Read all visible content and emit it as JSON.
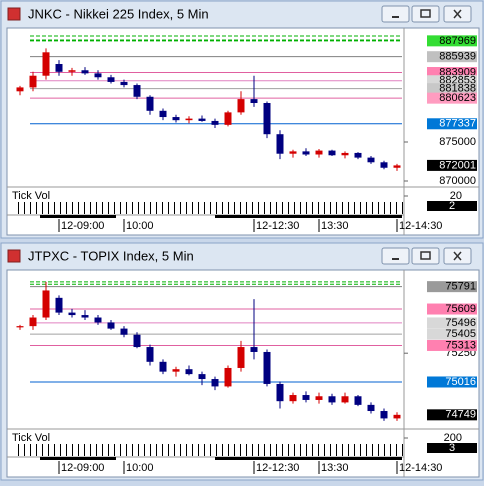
{
  "chart_data": [
    {
      "type": "candlestick",
      "title": "JNKC - Nikkei 225 Index, 5 Min",
      "categories": [
        null,
        null,
        null,
        "12-09:00",
        null,
        null,
        null,
        null,
        "10:00",
        null,
        null,
        null,
        null,
        null,
        null,
        null,
        null,
        null,
        "12-12:30",
        null,
        null,
        null,
        null,
        "13:30",
        null,
        null,
        null,
        null,
        null,
        "12-14:30"
      ],
      "open": [
        881500,
        882000,
        883500,
        885000,
        884000,
        884200,
        883800,
        883300,
        882700,
        882300,
        880800,
        879000,
        878200,
        877800,
        878000,
        877700,
        877200,
        878800,
        880500,
        880000,
        876000,
        873500,
        873800,
        873400,
        873900,
        873300,
        873600,
        873000,
        872400,
        871700
      ],
      "high": [
        882200,
        884000,
        887000,
        885500,
        884500,
        884600,
        884200,
        883600,
        883000,
        882500,
        881000,
        879300,
        878500,
        878300,
        878400,
        878000,
        879000,
        881500,
        883500,
        880200,
        876500,
        874000,
        874200,
        874100,
        874000,
        873800,
        873700,
        873200,
        872600,
        872200
      ],
      "low": [
        881000,
        881500,
        883000,
        883500,
        883500,
        883600,
        883000,
        882500,
        882000,
        880500,
        878500,
        877800,
        877500,
        877400,
        877600,
        876800,
        877000,
        878500,
        879500,
        875500,
        872800,
        873000,
        873200,
        873000,
        873200,
        872900,
        872800,
        872200,
        871500,
        871300
      ],
      "close": [
        882000,
        883500,
        886500,
        884000,
        884200,
        883800,
        883300,
        882700,
        882300,
        880800,
        879000,
        878200,
        877800,
        878000,
        877700,
        877200,
        878800,
        880500,
        880000,
        876000,
        873500,
        873800,
        873400,
        873900,
        873300,
        873600,
        873000,
        872400,
        871700,
        872001
      ],
      "up_color": "#d40000",
      "down_color": "#000080",
      "ylim": [
        869360,
        889360
      ],
      "yticks": [
        875000,
        870000
      ],
      "levels": [
        {
          "value": 888590,
          "line": "#00b000",
          "dash": true
        },
        {
          "value": 888080,
          "line": "#00b000",
          "dash": true
        },
        {
          "value": 887969,
          "line": "#00b000",
          "dash": true,
          "label_bg": "#33dd33",
          "label_color": "#000000"
        },
        {
          "value": 885939,
          "line": "#808080",
          "label_bg": "#c0c0c0",
          "label_color": "#000000"
        },
        {
          "value": 883909,
          "line": "#e060a0",
          "label_bg": "#ff80b0",
          "label_color": "#000000"
        },
        {
          "value": 882853,
          "line": "#e080c0",
          "label_bg": "#d8d8d8",
          "label_color": "#000000"
        },
        {
          "value": 881838,
          "line": "#a0a0a0",
          "label_bg": "#c8c8c8",
          "label_color": "#000000"
        },
        {
          "value": 880623,
          "line": "#e060a0",
          "label_bg": "#ff9cc0",
          "label_color": "#000000"
        },
        {
          "value": 877337,
          "line": "#0060d0",
          "label_bg": "#0078d7",
          "label_color": "#ffffff"
        },
        {
          "value": 872001,
          "label_bg": "#000000",
          "label_color": "#ffffff"
        }
      ],
      "volume_label": "Tick Vol",
      "volume_ticks": [
        20
      ],
      "volume_last": 2
    },
    {
      "type": "candlestick",
      "title": "JTPXC - TOPIX Index, 5 Min",
      "categories": [
        null,
        null,
        null,
        "12-09:00",
        null,
        null,
        null,
        null,
        "10:00",
        null,
        null,
        null,
        null,
        null,
        null,
        null,
        null,
        null,
        "12-12:30",
        null,
        null,
        null,
        null,
        "13:30",
        null,
        null,
        null,
        null,
        null,
        "12-14:30"
      ],
      "open": [
        75460,
        75470,
        75540,
        75700,
        75580,
        75560,
        75540,
        75500,
        75450,
        75400,
        75300,
        75180,
        75100,
        75120,
        75080,
        75040,
        74980,
        75130,
        75300,
        75260,
        75000,
        74860,
        74910,
        74870,
        74900,
        74850,
        74900,
        74830,
        74780,
        74720
      ],
      "high": [
        75480,
        75560,
        75830,
        75720,
        75610,
        75600,
        75560,
        75520,
        75470,
        75420,
        75320,
        75200,
        75140,
        75150,
        75100,
        75060,
        75150,
        75350,
        75690,
        75280,
        75020,
        74930,
        74940,
        74930,
        74920,
        74930,
        74910,
        74850,
        74800,
        74770
      ],
      "low": [
        75440,
        75440,
        75520,
        75560,
        75540,
        75520,
        75480,
        75440,
        75380,
        75290,
        75150,
        75080,
        75060,
        75070,
        74990,
        74950,
        74970,
        75100,
        75200,
        74980,
        74800,
        74840,
        74850,
        74840,
        74830,
        74840,
        74820,
        74760,
        74700,
        74700
      ],
      "close": [
        75470,
        75540,
        75760,
        75580,
        75560,
        75540,
        75500,
        75450,
        75400,
        75300,
        75180,
        75100,
        75120,
        75080,
        75040,
        74980,
        75130,
        75300,
        75260,
        75000,
        74860,
        74910,
        74870,
        74900,
        74850,
        74900,
        74830,
        74780,
        74720,
        74749
      ],
      "up_color": "#d40000",
      "down_color": "#000080",
      "ylim": [
        74642,
        75910
      ],
      "yticks": [
        75250
      ],
      "levels": [
        {
          "value": 75830,
          "line": "#00b000",
          "dash": true
        },
        {
          "value": 75810,
          "line": "#00b000",
          "dash": true
        },
        {
          "value": 75791,
          "line": "#808080",
          "label_bg": "#9a9a9a",
          "label_color": "#000000"
        },
        {
          "value": 75609,
          "line": "#e060a0",
          "label_bg": "#ff80b0",
          "label_color": "#000000"
        },
        {
          "value": 75496,
          "line": "#e080c0",
          "label_bg": "#d8d8d8",
          "label_color": "#000000"
        },
        {
          "value": 75405,
          "line": "#a0a0a0",
          "label_bg": "#d8d8d8",
          "label_color": "#000000"
        },
        {
          "value": 75313,
          "line": "#e060a0",
          "label_bg": "#ff80b0",
          "label_color": "#000000"
        },
        {
          "value": 75016,
          "line": "#0060d0",
          "label_bg": "#0078d7",
          "label_color": "#ffffff"
        },
        {
          "value": 74749,
          "label_bg": "#000000",
          "label_color": "#ffffff"
        }
      ],
      "volume_label": "Tick Vol",
      "volume_ticks": [
        200
      ],
      "volume_last": 3
    }
  ]
}
